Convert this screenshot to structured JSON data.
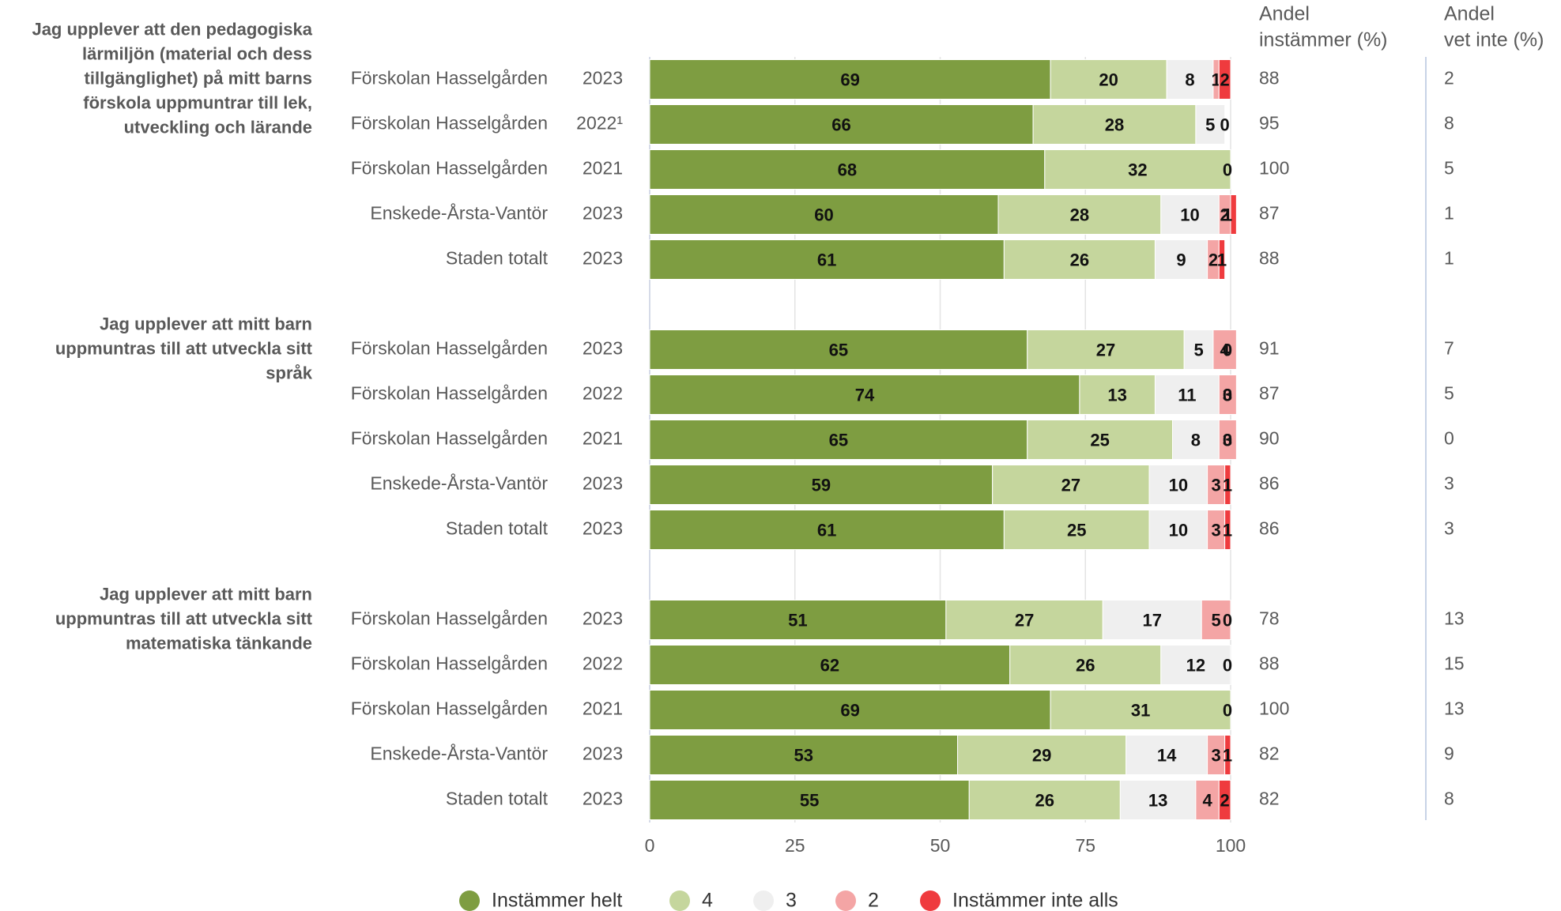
{
  "chart_data": {
    "type": "bar",
    "orientation": "horizontal",
    "stacked": true,
    "xlim": [
      0,
      100
    ],
    "xticks": [
      0,
      25,
      50,
      75,
      100
    ],
    "grid": true,
    "groups": [
      {
        "question": [
          "Jag upplever att den pedagogiska",
          "lärmiljön (material och dess",
          "tillgänglighet) på mitt barns",
          "förskola uppmuntrar till lek,",
          "utveckling och lärande"
        ],
        "categories": [
          "Förskolan Hasselgården",
          "Förskolan Hasselgården",
          "Förskolan Hasselgården",
          "Enskede-Årsta-Vantör",
          "Staden totalt"
        ],
        "years": [
          "2023",
          "2022¹",
          "2021",
          "2023",
          "2023"
        ]
      },
      {
        "question": [
          "Jag upplever att mitt barn",
          "uppmuntras till att utveckla sitt",
          "språk"
        ],
        "categories": [
          "Förskolan Hasselgården",
          "Förskolan Hasselgården",
          "Förskolan Hasselgården",
          "Enskede-Årsta-Vantör",
          "Staden totalt"
        ],
        "years": [
          "2023",
          "2022",
          "2021",
          "2023",
          "2023"
        ]
      },
      {
        "question": [
          "Jag upplever att mitt barn",
          "uppmuntras till att utveckla sitt",
          "matematiska tänkande"
        ],
        "categories": [
          "Förskolan Hasselgården",
          "Förskolan Hasselgården",
          "Förskolan Hasselgården",
          "Enskede-Årsta-Vantör",
          "Staden totalt"
        ],
        "years": [
          "2023",
          "2022",
          "2021",
          "2023",
          "2023"
        ]
      }
    ],
    "series": [
      {
        "name": "Instämmer helt",
        "color": "#7e9d41",
        "values": [
          [
            69,
            66,
            68,
            60,
            61
          ],
          [
            65,
            74,
            65,
            59,
            61
          ],
          [
            51,
            62,
            69,
            53,
            55
          ]
        ]
      },
      {
        "name": "4",
        "color": "#c5d69d",
        "values": [
          [
            20,
            28,
            32,
            28,
            26
          ],
          [
            27,
            13,
            25,
            27,
            25
          ],
          [
            27,
            26,
            31,
            29,
            26
          ]
        ]
      },
      {
        "name": "3",
        "color": "#efefef",
        "values": [
          [
            8,
            5,
            null,
            10,
            9
          ],
          [
            5,
            11,
            8,
            10,
            10
          ],
          [
            17,
            12,
            null,
            14,
            13
          ]
        ]
      },
      {
        "name": "2",
        "color": "#f4a5a5",
        "values": [
          [
            1,
            null,
            null,
            2,
            2
          ],
          [
            4,
            3,
            3,
            3,
            3
          ],
          [
            5,
            null,
            null,
            3,
            4
          ]
        ]
      },
      {
        "name": "Instämmer inte alls",
        "color": "#ef3b3e",
        "values": [
          [
            2,
            0,
            0,
            1,
            1
          ],
          [
            0,
            0,
            0,
            1,
            1
          ],
          [
            0,
            0,
            0,
            1,
            2
          ]
        ]
      }
    ],
    "columns": [
      {
        "header": [
          "Andel",
          "instämmer (%)"
        ],
        "values": [
          [
            88,
            95,
            100,
            87,
            88
          ],
          [
            91,
            87,
            90,
            86,
            86
          ],
          [
            78,
            88,
            100,
            82,
            82
          ]
        ]
      },
      {
        "header": [
          "Andel",
          "vet inte (%)"
        ],
        "values": [
          [
            2,
            8,
            5,
            1,
            1
          ],
          [
            7,
            5,
            0,
            3,
            3
          ],
          [
            13,
            15,
            13,
            9,
            8
          ]
        ]
      }
    ]
  }
}
